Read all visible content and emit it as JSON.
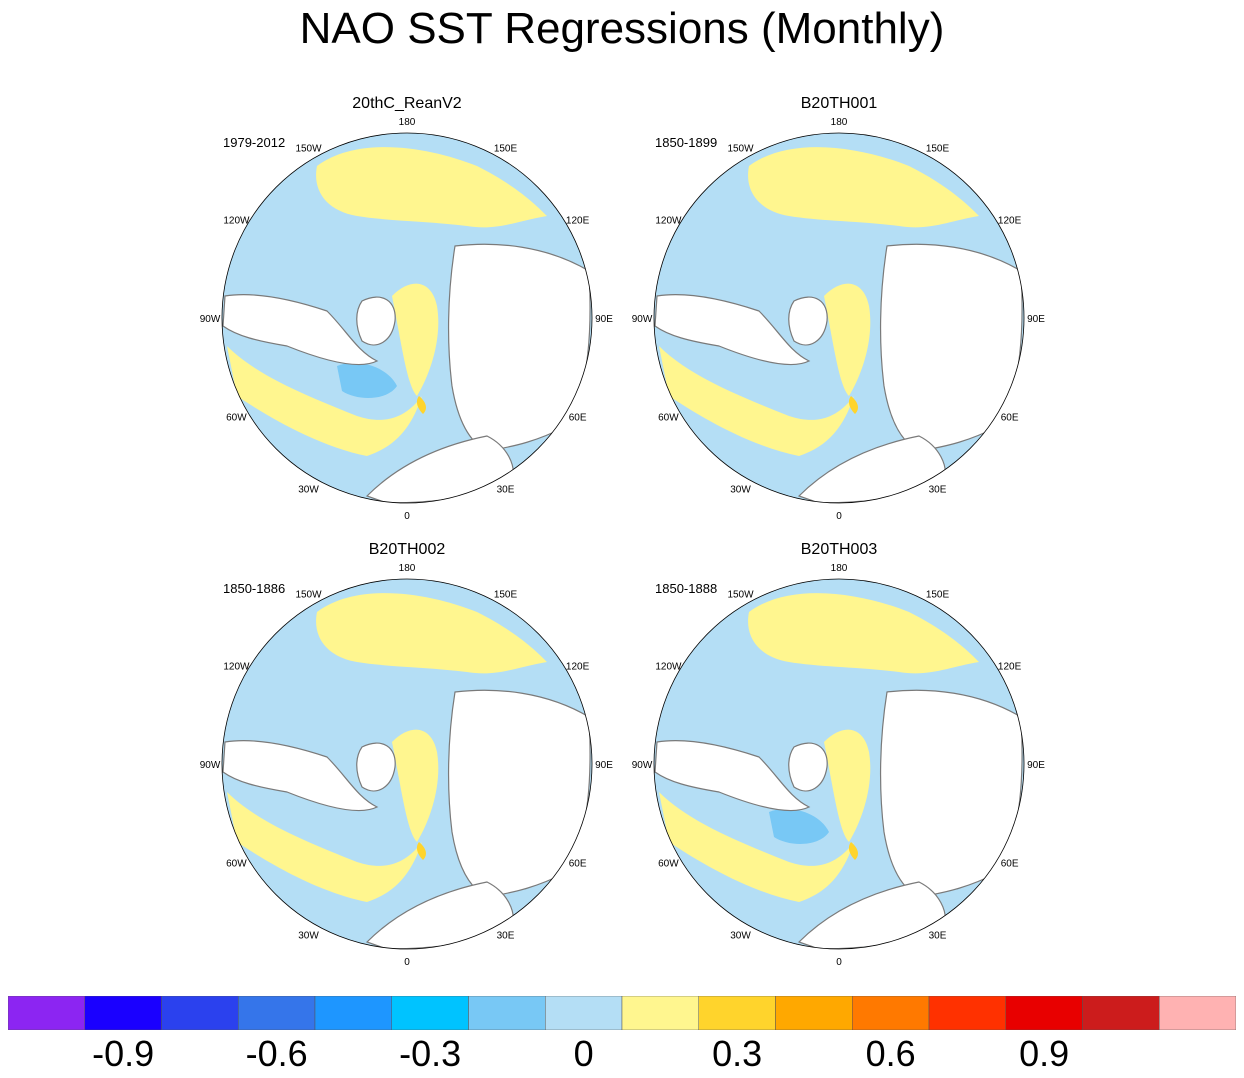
{
  "title": "NAO SST Regressions (Monthly)",
  "longitude_labels": [
    "180",
    "150E",
    "120E",
    "90E",
    "60E",
    "30E",
    "0",
    "30W",
    "60W",
    "90W",
    "120W",
    "150W"
  ],
  "panels": [
    {
      "title": "20thC_ReanV2",
      "period": "1979-2012"
    },
    {
      "title": "B20TH001",
      "period": "1850-1899"
    },
    {
      "title": "B20TH002",
      "period": "1850-1886"
    },
    {
      "title": "B20TH003",
      "period": "1850-1888"
    }
  ],
  "colorbar": {
    "colors": [
      "#8c25f2",
      "#1a00ff",
      "#2b41ee",
      "#3575ea",
      "#1e96ff",
      "#00c3ff",
      "#78c8f5",
      "#b4def5",
      "#fff68f",
      "#ffd42c",
      "#ffa800",
      "#ff7900",
      "#ff3100",
      "#e80000",
      "#cc1c1c",
      "#ffb2b2"
    ],
    "tick_labels": [
      "-0.9",
      "-0.6",
      "-0.3",
      "0",
      "0.3",
      "0.6",
      "0.9"
    ]
  },
  "map_colors": {
    "land": "#ffffff",
    "coast": "#7a7a7a",
    "warm": "#fff68f",
    "cool": "#b4def5",
    "cold": "#78c8f5",
    "hot": "#ffd42c"
  }
}
